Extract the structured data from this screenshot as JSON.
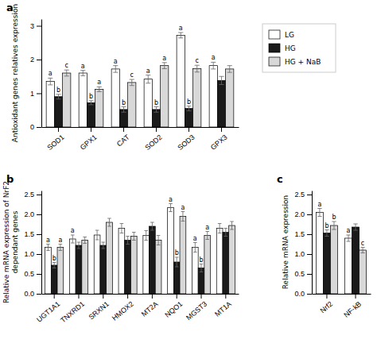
{
  "chart_data": [
    {
      "type": "bar",
      "title": "a",
      "categories": [
        "SOD1",
        "GPX1",
        "CAT",
        "SOD2",
        "SOD3",
        "GPX3"
      ],
      "series": [
        {
          "name": "LG",
          "color": "#ffffff",
          "values": [
            1.35,
            1.6,
            1.72,
            1.42,
            2.72,
            1.82
          ],
          "errors": [
            0.1,
            0.08,
            0.1,
            0.12,
            0.08,
            0.1
          ],
          "letters": [
            "a",
            "a",
            "a",
            "a",
            "a",
            "a"
          ]
        },
        {
          "name": "HG",
          "color": "#1a1a1a",
          "values": [
            0.9,
            0.72,
            0.52,
            0.52,
            0.55,
            1.38
          ],
          "errors": [
            0.07,
            0.06,
            0.08,
            0.08,
            0.07,
            0.12
          ],
          "letters": [
            "b",
            "b",
            "b",
            "b",
            "b",
            null
          ]
        },
        {
          "name": "HG + NaB",
          "color": "#d8d8d8",
          "values": [
            1.6,
            1.12,
            1.32,
            1.82,
            1.73,
            1.72
          ],
          "errors": [
            0.09,
            0.07,
            0.09,
            0.09,
            0.1,
            0.1
          ],
          "letters": [
            "c",
            "a",
            "c",
            "a",
            "c",
            null
          ]
        }
      ],
      "ylabel": "Antioxidant genes relatives expression",
      "ylim": [
        0,
        3.2
      ],
      "yticks": [
        0,
        1,
        2,
        3
      ],
      "grid": false,
      "legend": "right"
    },
    {
      "type": "bar",
      "title": "b",
      "categories": [
        "UGT1A1",
        "TNXRD1",
        "SRXN1",
        "HMOX2",
        "MT2A",
        "NQO1",
        "MGST3",
        "MT1A"
      ],
      "series": [
        {
          "name": "LG",
          "color": "#ffffff",
          "values": [
            1.17,
            1.38,
            1.48,
            1.65,
            1.47,
            2.17,
            1.17,
            1.65
          ],
          "errors": [
            0.08,
            0.1,
            0.12,
            0.12,
            0.12,
            0.1,
            0.12,
            0.12
          ],
          "letters": [
            "a",
            "a",
            null,
            null,
            null,
            "a",
            "a",
            null
          ]
        },
        {
          "name": "HG",
          "color": "#1a1a1a",
          "values": [
            0.72,
            1.22,
            1.22,
            1.35,
            1.7,
            0.8,
            0.65,
            1.55
          ],
          "errors": [
            0.07,
            0.08,
            0.08,
            0.1,
            0.1,
            0.12,
            0.1,
            0.1
          ],
          "letters": [
            "b",
            null,
            null,
            null,
            null,
            "b",
            "b",
            null
          ]
        },
        {
          "name": "HG + NaB",
          "color": "#d8d8d8",
          "values": [
            1.17,
            1.35,
            1.8,
            1.45,
            1.35,
            1.95,
            1.47,
            1.72
          ],
          "errors": [
            0.08,
            0.08,
            0.1,
            0.1,
            0.12,
            0.12,
            0.1,
            0.1
          ],
          "letters": [
            "a",
            null,
            null,
            null,
            null,
            "a",
            "a",
            null
          ]
        }
      ],
      "ylabel": "Relative mRNA expression of NrF2\ndependant genes",
      "ylim": [
        0,
        2.6
      ],
      "yticks": [
        {
          "value": 0,
          "label": "0.0"
        },
        0.5,
        {
          "value": 1,
          "label": "1.0"
        },
        1.5,
        {
          "value": 2,
          "label": "2.0"
        },
        2.5
      ],
      "grid": false
    },
    {
      "type": "bar",
      "title": "c",
      "categories": [
        "Nrf2",
        "NF-kB"
      ],
      "series": [
        {
          "name": "LG",
          "color": "#ffffff",
          "values": [
            2.05,
            1.4
          ],
          "errors": [
            0.1,
            0.08
          ],
          "letters": [
            "a",
            "a"
          ]
        },
        {
          "name": "HG",
          "color": "#1a1a1a",
          "values": [
            1.53,
            1.68
          ],
          "errors": [
            0.08,
            0.08
          ],
          "letters": [
            "b",
            null
          ]
        },
        {
          "name": "HG + NaB",
          "color": "#d8d8d8",
          "values": [
            1.72,
            1.1
          ],
          "errors": [
            0.1,
            0.07
          ],
          "letters": [
            "b",
            "c"
          ]
        }
      ],
      "ylabel": "Relative mRNA expression",
      "ylim": [
        0,
        2.6
      ],
      "yticks": [
        {
          "value": 0,
          "label": "0.0"
        },
        0.5,
        {
          "value": 1,
          "label": "1.0"
        },
        1.5,
        {
          "value": 2,
          "label": "2.0"
        },
        2.5
      ],
      "grid": false
    }
  ]
}
